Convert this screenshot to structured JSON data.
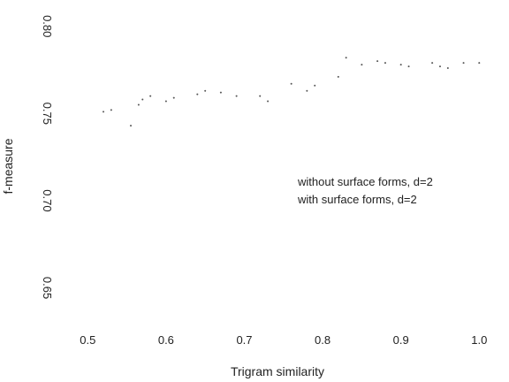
{
  "chart_data": {
    "type": "scatter",
    "title": "",
    "xlabel": "Trigram similarity",
    "ylabel": "f-measure",
    "xlim": [
      0.45,
      1.02
    ],
    "ylim": [
      0.63,
      0.81
    ],
    "xticks": [
      0.5,
      0.6,
      0.7,
      0.8,
      0.9,
      1.0
    ],
    "xtick_labels": [
      "0.5",
      "0.6",
      "0.7",
      "0.8",
      "0.9",
      "1.0"
    ],
    "yticks": [
      0.65,
      0.7,
      0.75,
      0.8
    ],
    "ytick_labels": [
      "0.65",
      "0.70",
      "0.75",
      "0.80"
    ],
    "grid": false,
    "legend_position": "center-right",
    "colors": {
      "points": "#555555",
      "text": "#222222"
    },
    "series": [
      {
        "name": "without surface forms, d=2",
        "x": [
          0.52,
          0.555,
          0.57,
          0.6,
          0.64,
          0.67,
          0.72,
          0.76,
          0.78,
          0.82,
          0.85,
          0.88,
          0.91,
          0.95,
          0.98
        ],
        "y": [
          0.751,
          0.743,
          0.758,
          0.757,
          0.761,
          0.762,
          0.76,
          0.767,
          0.763,
          0.771,
          0.778,
          0.779,
          0.777,
          0.777,
          0.779
        ]
      },
      {
        "name": "with surface forms, d=2",
        "x": [
          0.53,
          0.565,
          0.58,
          0.61,
          0.65,
          0.69,
          0.73,
          0.79,
          0.83,
          0.87,
          0.9,
          0.94,
          0.96,
          1.0
        ],
        "y": [
          0.752,
          0.755,
          0.76,
          0.759,
          0.763,
          0.76,
          0.757,
          0.766,
          0.782,
          0.78,
          0.778,
          0.779,
          0.776,
          0.779
        ]
      }
    ]
  }
}
